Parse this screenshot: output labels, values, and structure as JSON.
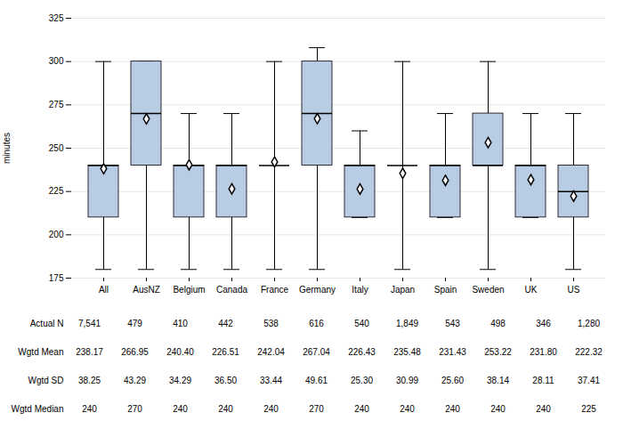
{
  "chart_data": {
    "type": "box",
    "ylabel": "minutes",
    "ylim": [
      175,
      325
    ],
    "yticks": [
      175,
      200,
      225,
      250,
      275,
      300,
      325
    ],
    "grid": true,
    "color": "#b8cce4",
    "categories": [
      "All",
      "AusNZ",
      "Belgium",
      "Canada",
      "France",
      "Germany",
      "Italy",
      "Japan",
      "Spain",
      "Sweden",
      "UK",
      "US"
    ],
    "box_stats": [
      {
        "whislo": 180,
        "q1": 210,
        "med": 240,
        "q3": 240,
        "whishi": 300,
        "mean": 238.17
      },
      {
        "whislo": 180,
        "q1": 240,
        "med": 270,
        "q3": 300,
        "whishi": 300,
        "mean": 266.95
      },
      {
        "whislo": 180,
        "q1": 210,
        "med": 240,
        "q3": 240,
        "whishi": 270,
        "mean": 240.4
      },
      {
        "whislo": 180,
        "q1": 210,
        "med": 240,
        "q3": 240,
        "whishi": 270,
        "mean": 226.51
      },
      {
        "whislo": 180,
        "q1": 240,
        "med": 240,
        "q3": 240,
        "whishi": 300,
        "mean": 242.04
      },
      {
        "whislo": 180,
        "q1": 240,
        "med": 270,
        "q3": 300,
        "whishi": 308,
        "mean": 267.04
      },
      {
        "whislo": 210,
        "q1": 210,
        "med": 240,
        "q3": 240,
        "whishi": 260,
        "mean": 226.43
      },
      {
        "whislo": 180,
        "q1": 240,
        "med": 240,
        "q3": 240,
        "whishi": 300,
        "mean": 235.48
      },
      {
        "whislo": 210,
        "q1": 210,
        "med": 240,
        "q3": 240,
        "whishi": 270,
        "mean": 231.43
      },
      {
        "whislo": 180,
        "q1": 240,
        "med": 240,
        "q3": 270,
        "whishi": 300,
        "mean": 253.22
      },
      {
        "whislo": 210,
        "q1": 210,
        "med": 240,
        "q3": 240,
        "whishi": 270,
        "mean": 231.8
      },
      {
        "whislo": 180,
        "q1": 210,
        "med": 225,
        "q3": 240,
        "whishi": 270,
        "mean": 222.32
      }
    ],
    "table_rows": [
      "Actual N",
      "Wgtd Mean",
      "Wgtd SD",
      "Wgtd Median"
    ],
    "table_values": [
      [
        "7,541",
        "479",
        "410",
        "442",
        "538",
        "616",
        "540",
        "1,849",
        "543",
        "498",
        "346",
        "1,280"
      ],
      [
        "238.17",
        "266.95",
        "240.40",
        "226.51",
        "242.04",
        "267.04",
        "226.43",
        "235.48",
        "231.43",
        "253.22",
        "231.80",
        "222.32"
      ],
      [
        "38.25",
        "43.29",
        "34.29",
        "36.50",
        "33.44",
        "49.61",
        "25.30",
        "30.99",
        "25.60",
        "38.14",
        "28.11",
        "37.41"
      ],
      [
        "240",
        "270",
        "240",
        "240",
        "240",
        "270",
        "240",
        "240",
        "240",
        "240",
        "240",
        "225"
      ]
    ]
  }
}
